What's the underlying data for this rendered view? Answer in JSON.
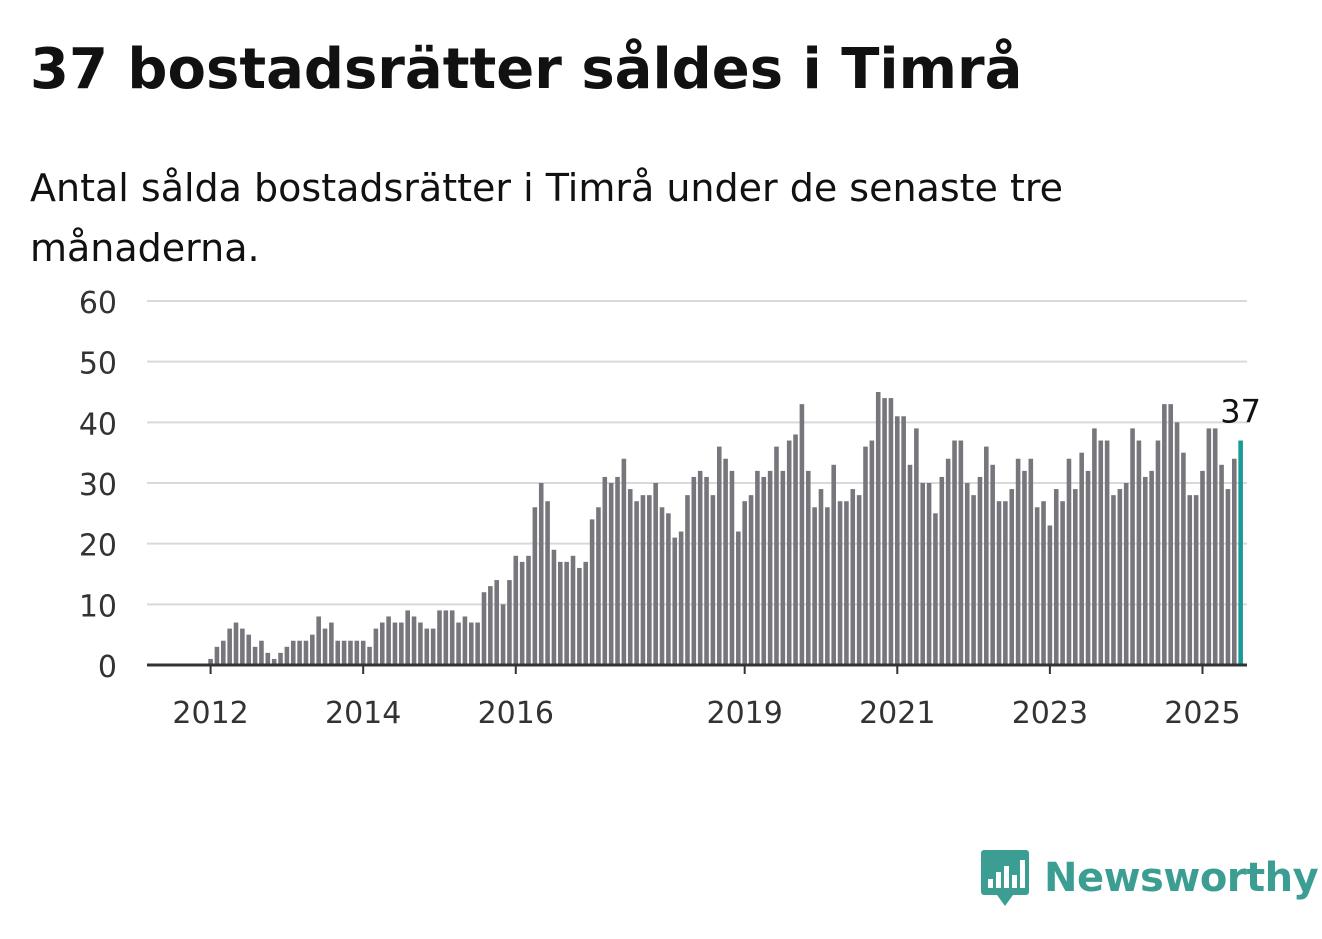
{
  "header": {
    "title": "37 bostadsrätter såldes i Timrå",
    "subtitle": "Antal sålda bostadsrätter i Timrå under de senaste tre månaderna."
  },
  "branding": {
    "logo_text": "Newsworthy",
    "logo_color": "#3c9e93"
  },
  "colors": {
    "bar": "#76767c",
    "highlight": "#1a9a96",
    "grid": "#d9d9d9",
    "axis": "#333333"
  },
  "chart_data": {
    "type": "bar",
    "title": "37 bostadsrätter såldes i Timrå",
    "subtitle": "Antal sålda bostadsrätter i Timrå under de senaste tre månaderna.",
    "x_start": "2011-03",
    "x_end": "2025-08",
    "ylim": [
      0,
      60
    ],
    "y_ticks": [
      0,
      10,
      20,
      30,
      40,
      50,
      60
    ],
    "x_tick_labels": [
      {
        "label": "2012",
        "date": "2012-01"
      },
      {
        "label": "2014",
        "date": "2014-01"
      },
      {
        "label": "2016",
        "date": "2016-01"
      },
      {
        "label": "2019",
        "date": "2019-01"
      },
      {
        "label": "2021",
        "date": "2021-01"
      },
      {
        "label": "2023",
        "date": "2023-01"
      },
      {
        "label": "2025",
        "date": "2025-01"
      }
    ],
    "highlight": {
      "date": "2025-07",
      "value": 37,
      "label": "37"
    },
    "grid": true,
    "series": [
      {
        "start": "2012-01",
        "values": [
          1,
          3,
          4,
          6,
          7,
          6,
          5,
          3,
          4,
          2,
          1,
          2,
          3,
          4,
          4,
          4,
          5,
          8,
          6,
          7,
          4,
          4,
          4,
          4,
          4,
          3,
          6,
          7,
          8,
          7,
          7,
          9,
          8,
          7,
          6,
          6,
          9,
          9,
          9,
          7,
          8,
          7,
          7,
          12,
          13,
          14,
          10,
          14,
          18,
          17,
          18,
          26,
          30,
          27,
          19,
          17,
          17,
          18,
          16,
          17,
          24,
          26,
          31,
          30,
          31,
          34,
          29,
          27,
          28,
          28,
          30,
          26,
          25,
          21,
          22,
          28,
          31,
          32,
          31,
          28,
          36,
          34,
          32,
          22,
          27,
          28,
          32,
          31,
          32,
          36,
          32,
          37,
          38,
          43,
          32,
          26,
          29,
          26,
          33,
          27,
          27,
          29,
          28,
          36,
          37,
          45,
          44,
          44,
          41,
          41,
          33,
          39,
          30,
          30,
          25,
          31,
          34,
          37,
          37,
          30,
          28,
          31,
          36,
          33,
          27,
          27,
          29,
          34,
          32,
          34,
          26,
          27,
          23,
          29,
          27,
          34,
          29,
          35,
          32,
          39,
          37,
          37,
          28,
          29,
          30,
          39,
          37,
          31,
          32,
          37,
          43,
          43,
          40,
          35,
          28,
          28,
          32,
          39,
          39,
          33,
          29,
          34,
          37
        ]
      }
    ]
  }
}
